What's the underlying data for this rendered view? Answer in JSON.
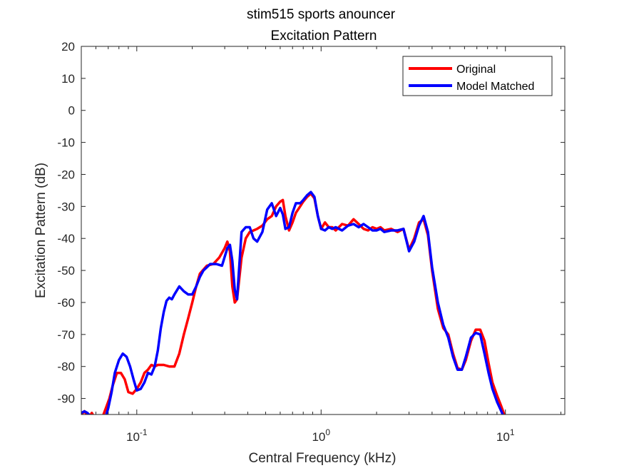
{
  "chart_data": {
    "type": "line",
    "title": "stim515 sports anouncer",
    "subtitle": "Excitation Pattern",
    "xlabel": "Central Frequency (kHz)",
    "ylabel": "Excitation Pattern (dB)",
    "xscale": "log",
    "xlim": [
      0.05,
      21
    ],
    "ylim": [
      -95,
      20
    ],
    "yticks": [
      20,
      10,
      0,
      -10,
      -20,
      -30,
      -40,
      -50,
      -60,
      -70,
      -80,
      -90
    ],
    "xtick_labels": [
      {
        "value": 0.1,
        "base": "10",
        "exp": "-1"
      },
      {
        "value": 1,
        "base": "10",
        "exp": "0"
      },
      {
        "value": 10,
        "base": "10",
        "exp": "1"
      }
    ],
    "grid": false,
    "legend_position": "top-right",
    "series": [
      {
        "name": "Original",
        "color": "#ff0000",
        "x": [
          0.05,
          0.052,
          0.055,
          0.057,
          0.059,
          0.061,
          0.063,
          0.065,
          0.068,
          0.071,
          0.074,
          0.078,
          0.082,
          0.086,
          0.09,
          0.095,
          0.1,
          0.105,
          0.11,
          0.115,
          0.12,
          0.125,
          0.13,
          0.14,
          0.15,
          0.16,
          0.17,
          0.18,
          0.19,
          0.2,
          0.21,
          0.22,
          0.24,
          0.26,
          0.28,
          0.3,
          0.31,
          0.32,
          0.33,
          0.34,
          0.35,
          0.37,
          0.39,
          0.41,
          0.43,
          0.45,
          0.48,
          0.51,
          0.54,
          0.57,
          0.6,
          0.62,
          0.64,
          0.67,
          0.7,
          0.73,
          0.77,
          0.8,
          0.84,
          0.88,
          0.92,
          0.96,
          1.0,
          1.05,
          1.1,
          1.15,
          1.2,
          1.3,
          1.4,
          1.5,
          1.6,
          1.7,
          1.8,
          1.9,
          2.0,
          2.1,
          2.2,
          2.4,
          2.6,
          2.8,
          3.0,
          3.2,
          3.4,
          3.6,
          3.8,
          4.0,
          4.3,
          4.6,
          4.9,
          5.2,
          5.5,
          5.8,
          6.1,
          6.5,
          6.9,
          7.3,
          7.7,
          8.1,
          8.5,
          9.0,
          9.5,
          10.0
        ],
        "y": [
          -95,
          -94,
          -96,
          -94.5,
          -96,
          -97,
          -97,
          -96,
          -93,
          -90,
          -86,
          -82,
          -82,
          -84,
          -88,
          -88.5,
          -87,
          -85,
          -82,
          -81,
          -79.5,
          -80,
          -79.5,
          -79.5,
          -80,
          -80,
          -76,
          -70,
          -65,
          -60,
          -55,
          -51,
          -48.5,
          -48,
          -46,
          -43,
          -41,
          -44,
          -55,
          -60,
          -59,
          -46,
          -40,
          -38,
          -37.5,
          -37,
          -36,
          -34,
          -33,
          -30,
          -28.5,
          -28,
          -33,
          -37.5,
          -35,
          -32,
          -30,
          -28.5,
          -27,
          -26,
          -27.5,
          -33,
          -37,
          -35,
          -36.5,
          -36.5,
          -37.5,
          -35.5,
          -36,
          -34,
          -35.5,
          -37,
          -37.5,
          -36.5,
          -37,
          -36.5,
          -37.5,
          -37,
          -38,
          -37,
          -43.5,
          -40,
          -35,
          -34,
          -39,
          -50,
          -62,
          -68,
          -70,
          -76,
          -80.5,
          -81,
          -78,
          -72,
          -68.5,
          -68.5,
          -72,
          -79,
          -85,
          -89,
          -92.5,
          -96
        ]
      },
      {
        "name": "Model Matched",
        "color": "#0000ff",
        "x": [
          0.05,
          0.052,
          0.054,
          0.056,
          0.058,
          0.06,
          0.062,
          0.064,
          0.066,
          0.068,
          0.07,
          0.073,
          0.076,
          0.08,
          0.084,
          0.088,
          0.092,
          0.096,
          0.1,
          0.105,
          0.11,
          0.115,
          0.12,
          0.125,
          0.13,
          0.135,
          0.14,
          0.145,
          0.15,
          0.155,
          0.16,
          0.17,
          0.18,
          0.19,
          0.2,
          0.21,
          0.22,
          0.23,
          0.24,
          0.25,
          0.27,
          0.29,
          0.31,
          0.32,
          0.33,
          0.34,
          0.35,
          0.37,
          0.39,
          0.41,
          0.43,
          0.45,
          0.48,
          0.51,
          0.54,
          0.57,
          0.6,
          0.62,
          0.64,
          0.67,
          0.7,
          0.73,
          0.77,
          0.8,
          0.84,
          0.88,
          0.92,
          0.96,
          1.0,
          1.05,
          1.1,
          1.15,
          1.2,
          1.3,
          1.4,
          1.5,
          1.6,
          1.7,
          1.8,
          1.9,
          2.0,
          2.1,
          2.2,
          2.4,
          2.6,
          2.8,
          3.0,
          3.2,
          3.4,
          3.6,
          3.8,
          4.0,
          4.3,
          4.6,
          4.9,
          5.2,
          5.5,
          5.8,
          6.1,
          6.5,
          6.9,
          7.3,
          7.7,
          8.1,
          8.5,
          9.0,
          9.5,
          10.0
        ],
        "y": [
          -94.5,
          -94,
          -94.5,
          -95.5,
          -97,
          -97,
          -96.5,
          -96.5,
          -96,
          -95.5,
          -93,
          -88,
          -82,
          -78,
          -76,
          -77,
          -80,
          -84,
          -87.5,
          -87,
          -85,
          -82,
          -82.5,
          -80,
          -75,
          -68,
          -63,
          -59.5,
          -58.5,
          -59,
          -57.5,
          -55,
          -56.5,
          -57.5,
          -57.5,
          -55,
          -52,
          -50,
          -49,
          -48,
          -48,
          -48.5,
          -43,
          -42,
          -47,
          -56,
          -59,
          -38,
          -36.5,
          -36.5,
          -40,
          -41,
          -38,
          -31,
          -29,
          -33,
          -30.5,
          -32.5,
          -37,
          -36.5,
          -32,
          -29,
          -29,
          -28,
          -26.5,
          -25.5,
          -27,
          -33,
          -37,
          -37.5,
          -36.5,
          -37,
          -36.5,
          -37.5,
          -36,
          -35.5,
          -36.5,
          -35.5,
          -36.5,
          -37.5,
          -37.5,
          -37,
          -38,
          -37.5,
          -37.5,
          -37,
          -44,
          -41,
          -36,
          -33,
          -38,
          -49,
          -60,
          -67,
          -71,
          -77,
          -81,
          -81,
          -77,
          -71,
          -69.5,
          -70,
          -76,
          -82,
          -87,
          -91,
          -94,
          -97
        ]
      }
    ]
  }
}
